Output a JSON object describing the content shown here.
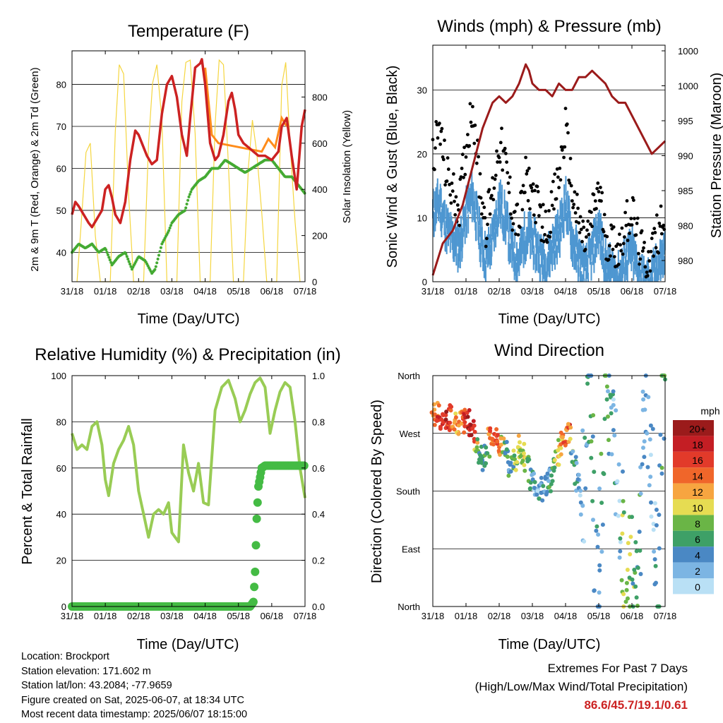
{
  "panels": {
    "temperature": {
      "title": "Temperature (F)",
      "ylabel_left": "2m & 9m T (Red, Orange) & 2m Td (Green)",
      "ylabel_right": "Solar Insolation (Yellow)",
      "xlabel": "Time (Day/UTC)"
    },
    "winds": {
      "title": "Winds (mph) & Pressure (mb)",
      "ylabel_left": "Sonic Wind & Gust (Blue, Black)",
      "ylabel_right": "Station Pressure (Maroon)",
      "xlabel": "Time (Day/UTC)"
    },
    "humidity": {
      "title": "Relative Humidity (%) & Precipitation (in)",
      "ylabel_left": "Percent & Total Rainfall",
      "xlabel": "Time (Day/UTC)"
    },
    "direction": {
      "title": "Wind Direction",
      "ylabel_left": "Direction (Colored By Speed)",
      "xlabel": "Time (Day/UTC)",
      "legend_title": "mph"
    }
  },
  "info": {
    "location": "Location: Brockport",
    "elevation": "Station elevation: 171.602 m",
    "latlon": "Station lat/lon: 43.2084; -77.9659",
    "created": "Figure created on Sat, 2025-06-07, at 18:34 UTC",
    "recent": "Most recent data timestamp: 2025/06/07 18:15:00"
  },
  "extremes": {
    "line1": "Extremes For Past 7 Days",
    "line2": "(High/Low/Max Wind/Total Precipitation)",
    "values": "86.6/45.7/19.1/0.61"
  },
  "chart_data": [
    {
      "type": "line",
      "title": "Temperature (F)",
      "xlabel": "Time (Day/UTC)",
      "ylabel": "2m & 9m T (Red, Orange) & 2m Td (Green)",
      "ylabel_right": "Solar Insolation (Yellow)",
      "x_ticks": [
        "31/18",
        "01/18",
        "02/18",
        "03/18",
        "04/18",
        "05/18",
        "06/18",
        "07/18"
      ],
      "xlim": [
        0,
        7
      ],
      "ylim": [
        33,
        88
      ],
      "y_ticks": [
        40,
        50,
        60,
        70,
        80
      ],
      "ylim_right": [
        0,
        1000
      ],
      "y_ticks_right": [
        0,
        200,
        400,
        600,
        800
      ],
      "grid": "horizontal",
      "colors": {
        "t2m": "#cc2222",
        "t9m": "#ff8c1a",
        "td": "#44aa33",
        "solar": "#f5d640"
      },
      "series": [
        {
          "key": "t2m",
          "x": [
            0,
            0.1,
            0.2,
            0.35,
            0.5,
            0.6,
            0.75,
            0.9,
            1.0,
            1.1,
            1.2,
            1.3,
            1.45,
            1.6,
            1.75,
            1.9,
            2.0,
            2.1,
            2.25,
            2.4,
            2.55,
            2.7,
            2.85,
            3.0,
            3.15,
            3.3,
            3.45,
            3.55,
            3.7,
            3.85,
            3.9,
            4.0,
            4.15,
            4.3,
            4.4,
            4.55,
            4.7,
            4.8,
            4.9,
            5.0,
            5.15,
            5.3,
            5.45,
            5.6,
            5.8,
            6.0,
            6.1,
            6.2,
            6.3,
            6.45,
            6.6,
            6.75,
            6.9,
            7.0
          ],
          "values": [
            49,
            52,
            51,
            49,
            47,
            46,
            48,
            50,
            55,
            56,
            53,
            49,
            47,
            52,
            62,
            69,
            68,
            66,
            63,
            61,
            62,
            73,
            80,
            82,
            77,
            68,
            63,
            72,
            84,
            85,
            86,
            80,
            66,
            62,
            63,
            68,
            76,
            78,
            74,
            68,
            66,
            65,
            64,
            63,
            63,
            62,
            63,
            64,
            70,
            72,
            63,
            55,
            70,
            74
          ]
        },
        {
          "key": "t9m",
          "x": [
            4.0,
            4.2,
            4.4,
            5.7,
            5.9,
            6.1,
            6.3,
            6.45
          ],
          "values": [
            84,
            68,
            66,
            64,
            67,
            65,
            72,
            70
          ]
        },
        {
          "key": "td",
          "x": [
            0,
            0.2,
            0.4,
            0.6,
            0.8,
            1.0,
            1.2,
            1.4,
            1.6,
            1.8,
            2.0,
            2.2,
            2.4,
            2.5,
            2.7,
            2.9,
            3.0,
            3.2,
            3.4,
            3.5,
            3.6,
            3.8,
            4.0,
            4.2,
            4.4,
            4.6,
            4.8,
            5.0,
            5.2,
            5.4,
            5.6,
            5.8,
            6.0,
            6.2,
            6.4,
            6.6,
            6.8,
            7.0
          ],
          "values": [
            40,
            42,
            41,
            42,
            40,
            41,
            37,
            39,
            40,
            36,
            39,
            38,
            35,
            36,
            42,
            45,
            47,
            49,
            50,
            53,
            55,
            57,
            58,
            60,
            60,
            62,
            61,
            60,
            59,
            60,
            61,
            62,
            62,
            60,
            58,
            58,
            56,
            54
          ]
        },
        {
          "key": "solar",
          "x": [
            0.15,
            0.3,
            0.42,
            0.55,
            0.7,
            0.85,
            1.15,
            1.3,
            1.42,
            1.55,
            1.7,
            1.85,
            2.15,
            2.3,
            2.42,
            2.55,
            2.7,
            2.85,
            3.15,
            3.3,
            3.42,
            3.55,
            3.7,
            3.85,
            4.15,
            4.3,
            4.42,
            4.55,
            4.7,
            4.85,
            5.15,
            5.3,
            5.42,
            5.55,
            5.7,
            5.85,
            6.15,
            6.3,
            6.42,
            6.55,
            6.7,
            6.85
          ],
          "values": [
            0,
            300,
            560,
            600,
            200,
            0,
            0,
            650,
            940,
            900,
            380,
            0,
            0,
            600,
            860,
            940,
            700,
            0,
            0,
            780,
            950,
            960,
            640,
            0,
            0,
            680,
            960,
            940,
            500,
            0,
            0,
            500,
            700,
            560,
            300,
            0,
            0,
            850,
            950,
            600,
            260,
            0
          ]
        }
      ]
    },
    {
      "type": "scatter",
      "title": "Winds (mph) & Pressure (mb)",
      "xlabel": "Time (Day/UTC)",
      "ylabel": "Sonic Wind & Gust (Blue, Black)",
      "ylabel_right": "Station Pressure (Maroon)",
      "x_ticks": [
        "31/18",
        "01/18",
        "02/18",
        "03/18",
        "04/18",
        "05/18",
        "06/18",
        "07/18"
      ],
      "xlim": [
        0,
        7
      ],
      "ylim": [
        0,
        37
      ],
      "y_ticks": [
        0,
        10,
        20,
        30
      ],
      "right_tick_labels": [
        "980",
        "980",
        "985",
        "990",
        "995",
        "1000",
        "1000"
      ],
      "grid": "horizontal",
      "colors": {
        "wind": "#4e97d1",
        "gust": "#000000",
        "pressure": "#9b1b1b"
      },
      "series": [
        {
          "key": "wind",
          "x": [
            0,
            0.2,
            0.4,
            0.6,
            0.8,
            1.0,
            1.2,
            1.4,
            1.6,
            1.8,
            2.0,
            2.2,
            2.4,
            2.6,
            2.8,
            3.0,
            3.2,
            3.4,
            3.6,
            3.8,
            4.0,
            4.2,
            4.4,
            4.6,
            4.8,
            5.0,
            5.2,
            5.4,
            5.6,
            5.8,
            6.0,
            6.2,
            6.4,
            6.6,
            6.8,
            7.0
          ],
          "values": [
            12,
            14,
            10,
            8,
            7,
            12,
            15,
            9,
            5,
            8,
            14,
            11,
            6,
            5,
            9,
            8,
            6,
            4,
            7,
            9,
            14,
            8,
            5,
            3,
            6,
            10,
            4,
            3,
            2,
            5,
            6,
            3,
            1,
            2,
            4,
            6
          ]
        },
        {
          "key": "gust",
          "x": [
            0,
            0.2,
            0.4,
            0.6,
            0.8,
            1.0,
            1.2,
            1.4,
            1.6,
            1.8,
            2.0,
            2.2,
            2.4,
            2.6,
            2.8,
            3.0,
            3.2,
            3.4,
            3.6,
            3.8,
            4.0,
            4.2,
            4.4,
            4.6,
            4.8,
            5.0,
            5.2,
            5.4,
            5.6,
            5.8,
            6.0,
            6.2,
            6.4,
            6.6,
            6.8,
            7.0
          ],
          "values": [
            20,
            24,
            17,
            14,
            12,
            21,
            28,
            16,
            9,
            14,
            22,
            18,
            11,
            9,
            16,
            14,
            11,
            8,
            12,
            16,
            24,
            14,
            9,
            6,
            10,
            15,
            7,
            6,
            5,
            9,
            11,
            6,
            3,
            5,
            8,
            12
          ]
        },
        {
          "key": "pressure",
          "x": [
            0,
            0.3,
            0.6,
            0.9,
            1.2,
            1.5,
            1.8,
            2.0,
            2.2,
            2.4,
            2.6,
            2.8,
            2.9,
            3.0,
            3.2,
            3.4,
            3.6,
            3.8,
            4.0,
            4.2,
            4.4,
            4.6,
            4.8,
            5.0,
            5.2,
            5.4,
            5.6,
            5.8,
            6.0,
            6.2,
            6.4,
            6.6,
            6.8,
            7.0
          ],
          "values": [
            1,
            6,
            8,
            12,
            18,
            24,
            28,
            29,
            28,
            29,
            31,
            34,
            33,
            31,
            30,
            30,
            29,
            31,
            30,
            30,
            32,
            32,
            33,
            32,
            31,
            29,
            28,
            28,
            26,
            24,
            22,
            20,
            21,
            22
          ]
        }
      ]
    },
    {
      "type": "line",
      "title": "Relative Humidity (%) & Precipitation (in)",
      "xlabel": "Time (Day/UTC)",
      "ylabel": "Percent & Total Rainfall",
      "x_ticks": [
        "31/18",
        "01/18",
        "02/18",
        "03/18",
        "04/18",
        "05/18",
        "06/18",
        "07/18"
      ],
      "xlim": [
        0,
        7
      ],
      "ylim": [
        0,
        100
      ],
      "y_ticks": [
        0,
        20,
        40,
        60,
        80,
        100
      ],
      "ylim_right": [
        0,
        1.0
      ],
      "y_ticks_right": [
        0.0,
        0.2,
        0.4,
        0.6,
        0.8,
        1.0
      ],
      "grid": "horizontal",
      "colors": {
        "rh": "#99cc55",
        "precip": "#44bb44"
      },
      "series": [
        {
          "key": "rh",
          "x": [
            0,
            0.15,
            0.3,
            0.45,
            0.6,
            0.75,
            0.9,
            1.0,
            1.1,
            1.25,
            1.4,
            1.55,
            1.7,
            1.85,
            2.0,
            2.15,
            2.3,
            2.45,
            2.6,
            2.75,
            2.9,
            3.0,
            3.1,
            3.2,
            3.35,
            3.5,
            3.65,
            3.8,
            3.95,
            4.1,
            4.3,
            4.5,
            4.7,
            4.9,
            5.05,
            5.2,
            5.35,
            5.5,
            5.65,
            5.8,
            5.95,
            6.1,
            6.25,
            6.4,
            6.55,
            6.7,
            6.85,
            7.0
          ],
          "values": [
            75,
            68,
            70,
            68,
            78,
            80,
            70,
            55,
            48,
            62,
            68,
            72,
            78,
            70,
            50,
            40,
            30,
            40,
            42,
            40,
            45,
            32,
            30,
            28,
            70,
            58,
            50,
            62,
            45,
            44,
            85,
            95,
            98,
            90,
            80,
            85,
            92,
            97,
            99,
            95,
            75,
            85,
            93,
            97,
            95,
            80,
            60,
            47
          ]
        },
        {
          "key": "precip",
          "x": [
            0,
            1,
            2,
            3,
            4,
            5.35,
            5.45,
            5.5,
            5.55,
            5.6,
            5.7,
            5.8,
            5.9,
            6.0,
            6.5,
            7.0
          ],
          "values": [
            0,
            0,
            0,
            0,
            0,
            0,
            0.02,
            0.15,
            0.38,
            0.52,
            0.6,
            0.61,
            0.61,
            0.61,
            0.61,
            0.61
          ]
        }
      ]
    },
    {
      "type": "scatter",
      "title": "Wind Direction",
      "xlabel": "Time (Day/UTC)",
      "ylabel": "Direction (Colored By Speed)",
      "x_ticks": [
        "31/18",
        "01/18",
        "02/18",
        "03/18",
        "04/18",
        "05/18",
        "06/18",
        "07/18"
      ],
      "xlim": [
        0,
        7
      ],
      "ylim": [
        0,
        360
      ],
      "y_tick_labels": [
        "North",
        "East",
        "South",
        "West",
        "North"
      ],
      "grid": "horizontal",
      "legend": {
        "title": "mph",
        "labels": [
          "20+",
          "18",
          "16",
          "14",
          "12",
          "10",
          "8",
          "6",
          "4",
          "2",
          "0"
        ],
        "colors": [
          "#9b1b1b",
          "#c41e24",
          "#e23a2a",
          "#f0662a",
          "#f7a540",
          "#e6dc52",
          "#6ab546",
          "#3ea067",
          "#4a88c4",
          "#7cb5e3",
          "#b9e0f5"
        ]
      },
      "series": [
        {
          "key": "direction",
          "x": [
            0.1,
            0.25,
            0.4,
            0.55,
            0.7,
            0.85,
            1.0,
            1.1,
            1.2,
            1.35,
            1.5,
            1.6,
            1.75,
            1.9,
            2.05,
            2.2,
            2.35,
            2.5,
            2.65,
            2.8,
            2.95,
            3.1,
            3.25,
            3.4,
            3.55,
            3.7,
            3.85,
            4.0,
            4.1,
            4.2,
            4.35,
            4.5,
            4.65,
            4.8,
            4.9,
            5.0,
            5.2,
            5.35,
            5.5,
            5.6,
            5.75,
            5.9,
            6.05,
            6.2,
            6.35,
            6.5,
            6.65,
            6.8,
            6.9
          ],
          "values": [
            300,
            295,
            285,
            300,
            290,
            285,
            295,
            290,
            280,
            240,
            230,
            235,
            270,
            265,
            255,
            240,
            220,
            230,
            250,
            230,
            200,
            190,
            180,
            190,
            200,
            230,
            250,
            260,
            270,
            250,
            200,
            150,
            300,
            320,
            60,
            30,
            340,
            300,
            250,
            200,
            80,
            60,
            50,
            70,
            320,
            250,
            180,
            20,
            340
          ],
          "speed": [
            14,
            16,
            18,
            15,
            13,
            12,
            16,
            18,
            20,
            6,
            5,
            6,
            14,
            16,
            12,
            6,
            5,
            8,
            10,
            9,
            4,
            3,
            3,
            4,
            5,
            8,
            12,
            14,
            15,
            6,
            3,
            2,
            4,
            6,
            5,
            3,
            8,
            4,
            3,
            2,
            8,
            9,
            7,
            6,
            2,
            3,
            2,
            5,
            6
          ]
        }
      ]
    }
  ]
}
